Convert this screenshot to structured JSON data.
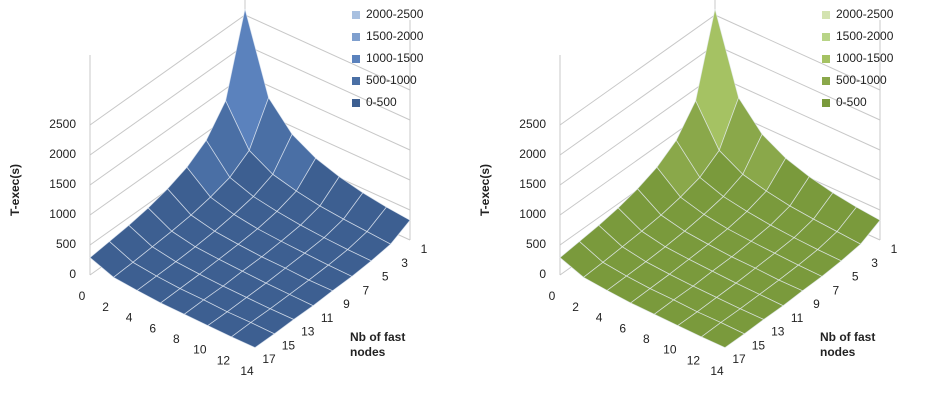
{
  "chart_data": [
    {
      "type": "surface",
      "z_label": "T-exec(s)",
      "y_label": "Nb of fast nodes",
      "x": [
        0,
        2,
        4,
        6,
        8,
        10,
        12,
        14
      ],
      "y": [
        1,
        3,
        5,
        7,
        9,
        11,
        13,
        15,
        17
      ],
      "values": [
        [
          2600,
          1300,
          870,
          650,
          520,
          430,
          370,
          330
        ],
        [
          1300,
          650,
          430,
          330,
          260,
          220,
          190,
          160
        ],
        [
          870,
          430,
          290,
          220,
          170,
          140,
          120,
          110
        ],
        [
          650,
          330,
          220,
          160,
          130,
          110,
          90,
          80
        ],
        [
          520,
          260,
          170,
          130,
          100,
          90,
          70,
          70
        ],
        [
          430,
          220,
          140,
          110,
          90,
          70,
          60,
          50
        ],
        [
          370,
          190,
          120,
          90,
          70,
          60,
          50,
          50
        ],
        [
          330,
          160,
          110,
          80,
          70,
          50,
          50,
          40
        ],
        [
          290,
          140,
          100,
          70,
          60,
          50,
          40,
          40
        ]
      ],
      "zlim": [
        0,
        2500
      ],
      "zticks": [
        0,
        500,
        1000,
        1500,
        2000,
        2500
      ],
      "levels": [
        {
          "name": "2000-2500",
          "color": "#a8c0e0"
        },
        {
          "name": "1500-2000",
          "color": "#7f9fce"
        },
        {
          "name": "1000-1500",
          "color": "#5b82bd"
        },
        {
          "name": "500-1000",
          "color": "#4a6fa5"
        },
        {
          "name": "0-500",
          "color": "#3d5f91"
        }
      ]
    },
    {
      "type": "surface",
      "z_label": "T-exec(s)",
      "y_label": "Nb of fast nodes",
      "x": [
        0,
        2,
        4,
        6,
        8,
        10,
        12,
        14
      ],
      "y": [
        1,
        3,
        5,
        7,
        9,
        11,
        13,
        15,
        17
      ],
      "values": [
        [
          2600,
          1300,
          870,
          650,
          520,
          430,
          370,
          330
        ],
        [
          1300,
          650,
          430,
          330,
          260,
          220,
          190,
          160
        ],
        [
          870,
          430,
          290,
          220,
          170,
          140,
          120,
          110
        ],
        [
          650,
          330,
          220,
          160,
          130,
          110,
          90,
          80
        ],
        [
          520,
          260,
          170,
          130,
          100,
          90,
          70,
          70
        ],
        [
          430,
          220,
          140,
          110,
          90,
          70,
          60,
          50
        ],
        [
          370,
          190,
          120,
          90,
          70,
          60,
          50,
          50
        ],
        [
          330,
          160,
          110,
          80,
          70,
          50,
          50,
          40
        ],
        [
          290,
          140,
          100,
          70,
          60,
          50,
          40,
          40
        ]
      ],
      "zlim": [
        0,
        2500
      ],
      "zticks": [
        0,
        500,
        1000,
        1500,
        2000,
        2500
      ],
      "levels": [
        {
          "name": "2000-2500",
          "color": "#d3e3b0"
        },
        {
          "name": "1500-2000",
          "color": "#b8d487"
        },
        {
          "name": "1000-1500",
          "color": "#a5c263"
        },
        {
          "name": "500-1000",
          "color": "#8aa84a"
        },
        {
          "name": "0-500",
          "color": "#7a9a3c"
        }
      ]
    }
  ]
}
